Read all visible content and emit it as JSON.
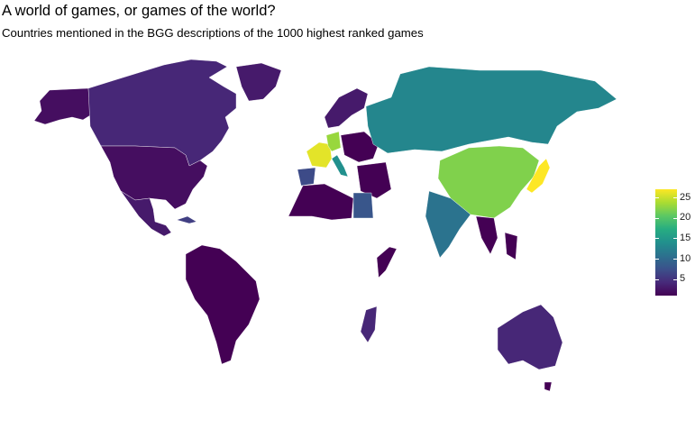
{
  "title": "A world of games, or games of the world?",
  "subtitle": "Countries mentioned in the BGG descriptions of the 1000 highest ranked games",
  "legend": {
    "min": 1,
    "max": 27,
    "ticks": [
      "25",
      "20",
      "15",
      "10",
      "5"
    ],
    "tick_values": [
      25,
      20,
      15,
      10,
      5
    ],
    "palette": [
      "#440154",
      "#472a7a",
      "#3b518b",
      "#2c718e",
      "#21908d",
      "#27ad81",
      "#5cc863",
      "#aadc32",
      "#fde725"
    ]
  },
  "countries": [
    {
      "name": "Canada",
      "value": 4
    },
    {
      "name": "United States",
      "value": 2
    },
    {
      "name": "Alaska",
      "value": 2
    },
    {
      "name": "Mexico",
      "value": 3
    },
    {
      "name": "Cuba",
      "value": 6
    },
    {
      "name": "Greenland",
      "value": 3
    },
    {
      "name": "South America",
      "value": 1
    },
    {
      "name": "Russia",
      "value": 13
    },
    {
      "name": "China",
      "value": 22
    },
    {
      "name": "Japan",
      "value": 27
    },
    {
      "name": "India",
      "value": 11
    },
    {
      "name": "France",
      "value": 26
    },
    {
      "name": "Germany",
      "value": 23
    },
    {
      "name": "Italy",
      "value": 14
    },
    {
      "name": "Spain",
      "value": 7
    },
    {
      "name": "Scandinavia",
      "value": 3
    },
    {
      "name": "Egypt",
      "value": 8
    },
    {
      "name": "Australia",
      "value": 4
    },
    {
      "name": "Madagascar",
      "value": 4
    }
  ]
}
